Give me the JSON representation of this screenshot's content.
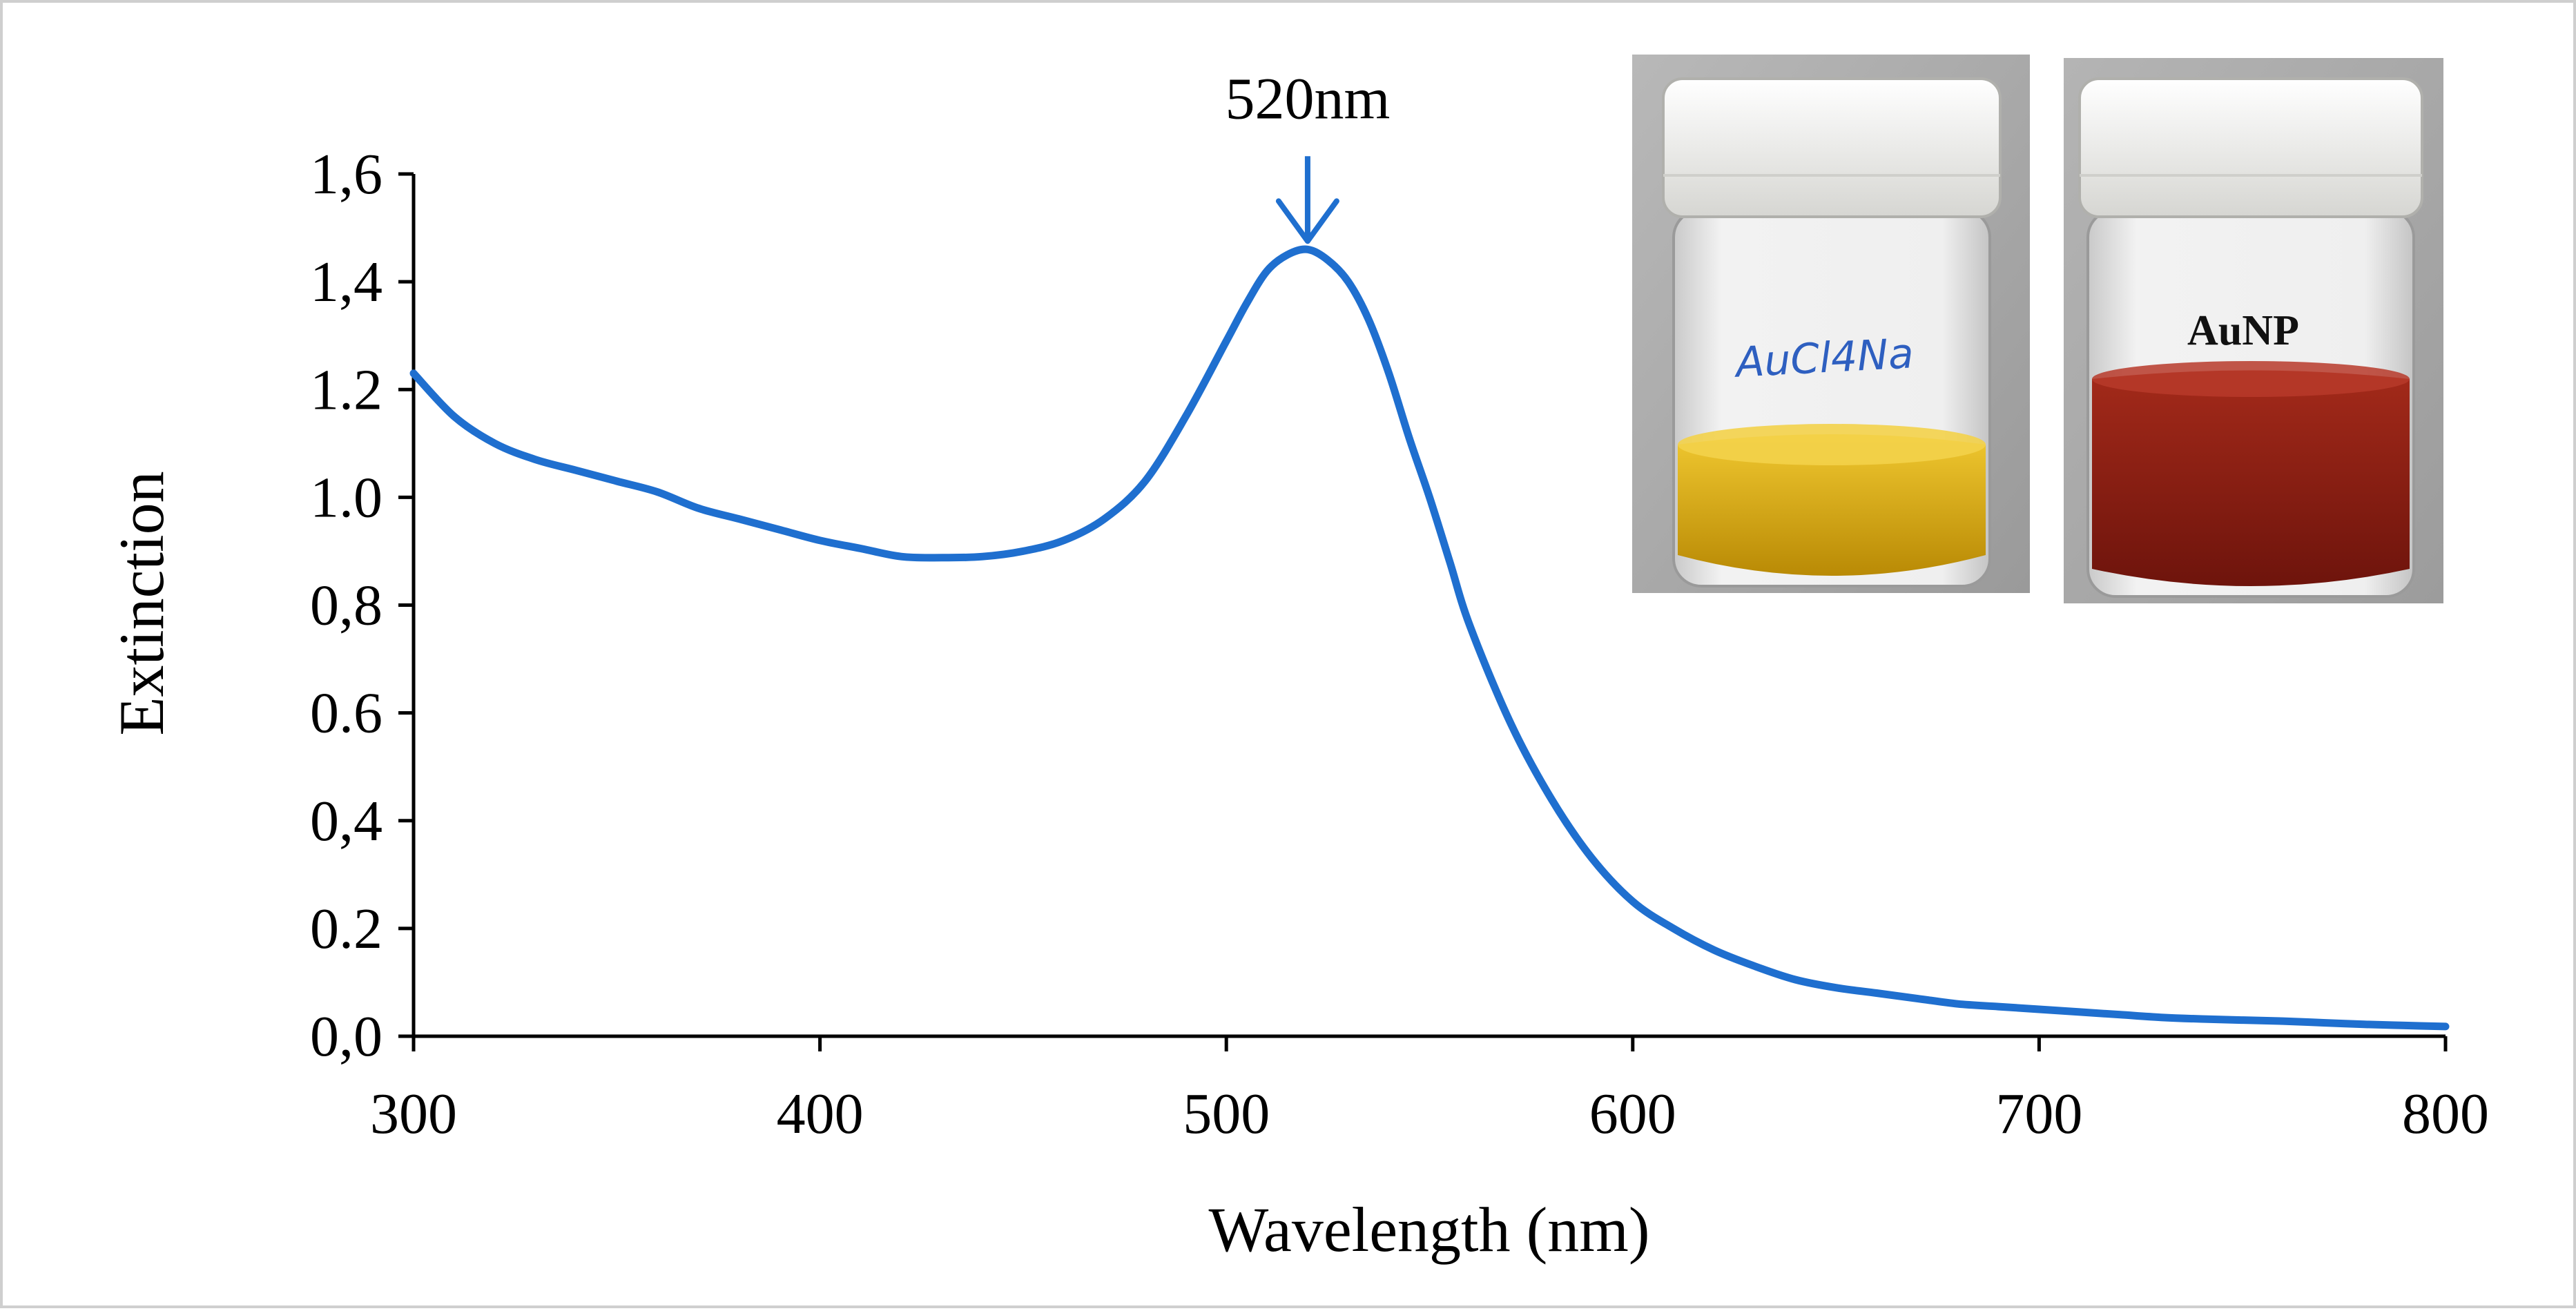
{
  "chart_data": {
    "type": "line",
    "xlabel": "Wavelength (nm)",
    "ylabel": "Extinction",
    "xlim": [
      300,
      800
    ],
    "ylim": [
      0.0,
      1.6
    ],
    "x_ticks": [
      300,
      400,
      500,
      600,
      700,
      800
    ],
    "x_tick_labels": [
      "300",
      "400",
      "500",
      "600",
      "700",
      "800"
    ],
    "y_ticks": [
      0.0,
      0.2,
      0.4,
      0.6,
      0.8,
      1.0,
      1.2,
      1.4,
      1.6
    ],
    "y_tick_labels": [
      "0,0",
      "0.2",
      "0,4",
      "0.6",
      "0,8",
      "1.0",
      "1.2",
      "1,4",
      "1,6"
    ],
    "grid": false,
    "series": [
      {
        "color": "#1f6fcf",
        "x": [
          300,
          310,
          320,
          330,
          340,
          350,
          360,
          370,
          380,
          390,
          400,
          410,
          420,
          430,
          440,
          450,
          460,
          470,
          480,
          490,
          500,
          505,
          510,
          515,
          520,
          525,
          530,
          535,
          540,
          545,
          550,
          555,
          560,
          570,
          580,
          590,
          600,
          610,
          620,
          630,
          640,
          650,
          660,
          670,
          680,
          690,
          700,
          710,
          720,
          730,
          740,
          750,
          760,
          770,
          780,
          790,
          800
        ],
        "y": [
          1.23,
          1.15,
          1.1,
          1.07,
          1.05,
          1.03,
          1.01,
          0.98,
          0.96,
          0.94,
          0.92,
          0.905,
          0.89,
          0.888,
          0.89,
          0.9,
          0.92,
          0.96,
          1.03,
          1.15,
          1.29,
          1.36,
          1.42,
          1.45,
          1.46,
          1.44,
          1.4,
          1.33,
          1.23,
          1.11,
          1.0,
          0.88,
          0.76,
          0.58,
          0.44,
          0.33,
          0.25,
          0.2,
          0.16,
          0.13,
          0.105,
          0.09,
          0.08,
          0.07,
          0.06,
          0.055,
          0.05,
          0.045,
          0.04,
          0.035,
          0.032,
          0.03,
          0.028,
          0.025,
          0.022,
          0.02,
          0.018
        ]
      }
    ],
    "annotations": [
      {
        "text": "520nm",
        "x": 520,
        "y": 1.46,
        "arrow": true,
        "color": "#1f6fcf"
      }
    ]
  },
  "insets": {
    "vial_left_label": "AuCl4Na",
    "vial_right_label": "AuNP",
    "colors": {
      "cap": "#eeeeea",
      "glass": "#e4e4e4",
      "gold_solution": "#d9a808",
      "red_solution": "#8e1a10"
    }
  }
}
